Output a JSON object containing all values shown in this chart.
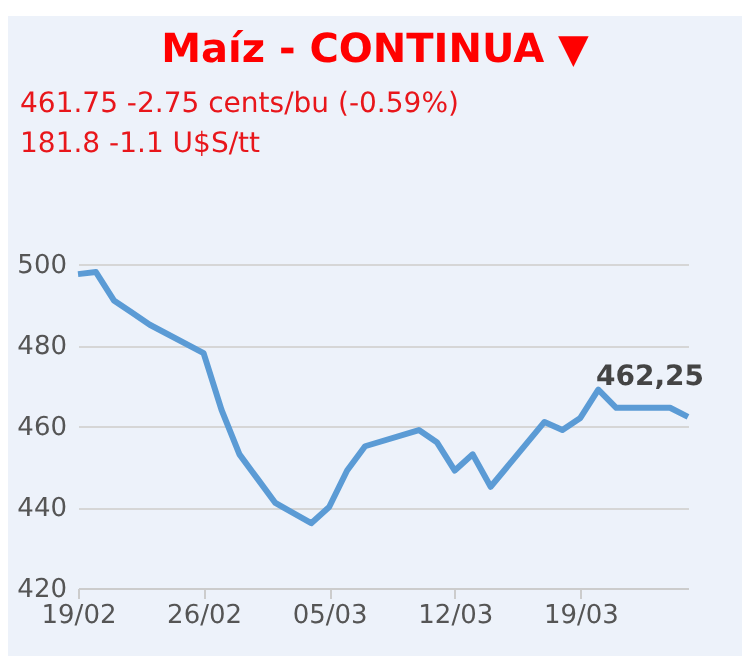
{
  "chart_data": {
    "type": "line",
    "title": "Maíz - CONTINUA ▼",
    "subtitle": "461.75 -2.75 cents/bu (-0.59%)",
    "annotations": [
      "181.8 -1.1 U$S/tt"
    ],
    "x": [
      "--02-19",
      "--02-20",
      "--02-21",
      "--02-22",
      "--02-23",
      "--02-26",
      "--02-27",
      "--02-28",
      "--03-01",
      "--03-02",
      "--03-04",
      "--03-05",
      "--03-06",
      "--03-07",
      "--03-10",
      "--03-11",
      "--03-12",
      "--03-13",
      "--03-14",
      "--03-17",
      "--03-18",
      "--03-19",
      "--03-20",
      "--03-21",
      "--03-24",
      "--03-25"
    ],
    "series": [
      {
        "color": "#5b9bd5",
        "values": [
          497.5,
          498,
          491,
          488,
          485,
          478,
          464,
          453,
          447,
          441,
          436,
          440,
          449,
          455,
          459,
          456,
          449,
          453,
          445,
          461,
          459,
          462,
          469,
          464.5,
          464.5,
          462.25
        ],
        "value_labels": [
          null,
          null,
          null,
          null,
          null,
          null,
          null,
          null,
          null,
          null,
          null,
          null,
          null,
          null,
          null,
          null,
          null,
          null,
          null,
          null,
          null,
          null,
          null,
          null,
          null,
          "462,25"
        ]
      }
    ],
    "xlim": [
      "--02-19",
      "--03-25"
    ],
    "xticks": [
      {
        "value": "--02-19",
        "label": "19/02"
      },
      {
        "value": "--02-26",
        "label": "26/02"
      },
      {
        "value": "--03-05",
        "label": "05/03"
      },
      {
        "value": "--03-12",
        "label": "12/03"
      },
      {
        "value": "--03-19",
        "label": "19/03"
      }
    ],
    "ylim": [
      420,
      500
    ],
    "yticks": [
      420,
      440,
      460,
      480,
      500
    ],
    "grid": "y",
    "marker": "none",
    "line_style": "solid"
  }
}
